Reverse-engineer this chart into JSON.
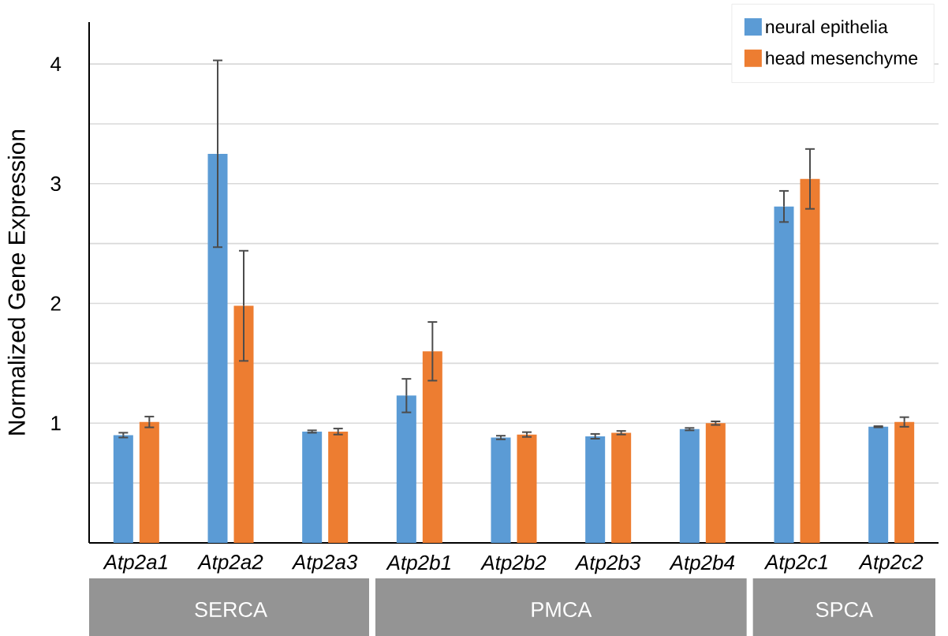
{
  "chart_data": {
    "type": "bar",
    "ylabel": "Normalized Gene Expression",
    "categories": [
      "Atp2a1",
      "Atp2a2",
      "Atp2a3",
      "Atp2b1",
      "Atp2b2",
      "Atp2b3",
      "Atp2b4",
      "Atp2c1",
      "Atp2c2"
    ],
    "series": [
      {
        "name": "neural epithelia",
        "color": "#5b9bd5",
        "values": [
          0.9,
          3.25,
          0.93,
          1.23,
          0.88,
          0.89,
          0.95,
          2.81,
          0.97
        ],
        "errors": [
          0.02,
          0.78,
          0.01,
          0.14,
          0.015,
          0.02,
          0.01,
          0.13,
          0.005
        ]
      },
      {
        "name": "head mesenchyme",
        "color": "#ed7d31",
        "values": [
          1.01,
          1.98,
          0.93,
          1.6,
          0.905,
          0.92,
          1.0,
          3.04,
          1.01
        ],
        "errors": [
          0.045,
          0.46,
          0.025,
          0.245,
          0.02,
          0.015,
          0.015,
          0.25,
          0.04
        ]
      }
    ],
    "ylim": [
      0,
      4.35
    ],
    "yticks": [
      {
        "value": 0.5,
        "label": null
      },
      1,
      {
        "value": 1.5,
        "label": null
      },
      2,
      {
        "value": 2.5,
        "label": null
      },
      3,
      {
        "value": 3.5,
        "label": null
      },
      4
    ],
    "grid": "y",
    "legend": "top right",
    "annotations": [
      "SERCA",
      "PMCA",
      "SPCA"
    ]
  }
}
